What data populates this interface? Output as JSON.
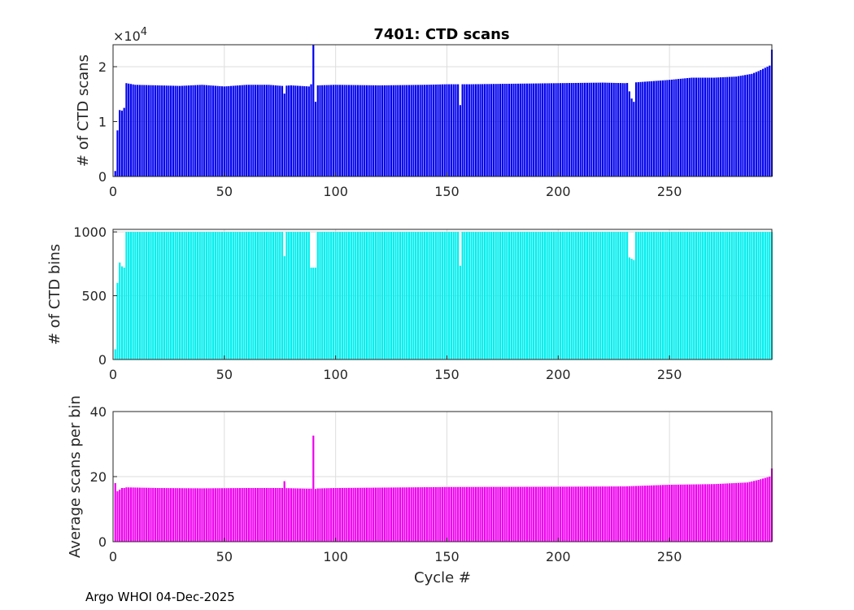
{
  "footer_text": "Argo WHOI 04-Dec-2025",
  "colors": {
    "scans": "#0000ee",
    "bins": "#00eeee",
    "avg": "#ee00ee",
    "grid": "#dedede",
    "axis": "#262626"
  },
  "chart_data": [
    {
      "type": "bar",
      "title": "7401: CTD scans",
      "xlabel": "",
      "ylabel": "# of CTD scans",
      "exponent_label": "×10",
      "exponent_power": "4",
      "xlim": [
        0,
        296
      ],
      "ylim": [
        0,
        2.4
      ],
      "xticks": [
        0,
        50,
        100,
        150,
        200,
        250
      ],
      "yticks": [
        0,
        1,
        2
      ],
      "ytick_labels": [
        "0",
        "1",
        "2"
      ],
      "series": [
        {
          "name": "scans (×10^4)",
          "color": "#0000ee",
          "base": [
            [
              1,
              0.1
            ],
            [
              2,
              0.84
            ],
            [
              3,
              1.21
            ],
            [
              4,
              1.2
            ],
            [
              5,
              1.25
            ],
            [
              6,
              1.7
            ],
            [
              10,
              1.67
            ],
            [
              20,
              1.66
            ],
            [
              30,
              1.65
            ],
            [
              40,
              1.67
            ],
            [
              50,
              1.64
            ],
            [
              60,
              1.67
            ],
            [
              70,
              1.67
            ],
            [
              76,
              1.65
            ],
            [
              80,
              1.66
            ],
            [
              88,
              1.64
            ],
            [
              92,
              1.66
            ],
            [
              100,
              1.67
            ],
            [
              120,
              1.66
            ],
            [
              140,
              1.67
            ],
            [
              150,
              1.68
            ],
            [
              160,
              1.68
            ],
            [
              180,
              1.69
            ],
            [
              200,
              1.7
            ],
            [
              220,
              1.71
            ],
            [
              230,
              1.7
            ],
            [
              240,
              1.73
            ],
            [
              250,
              1.76
            ],
            [
              260,
              1.8
            ],
            [
              270,
              1.8
            ],
            [
              280,
              1.82
            ],
            [
              287,
              1.87
            ],
            [
              290,
              1.92
            ],
            [
              295,
              2.02
            ]
          ],
          "overrides": {
            "77": 1.51,
            "89": 1.68,
            "90": 2.4,
            "91": 1.36,
            "156": 1.3,
            "232": 1.55,
            "233": 1.42,
            "234": 1.36,
            "296": 2.31
          }
        }
      ]
    },
    {
      "type": "bar",
      "title": "",
      "xlabel": "",
      "ylabel": "# of CTD bins",
      "xlim": [
        0,
        296
      ],
      "ylim": [
        0,
        1020
      ],
      "xticks": [
        0,
        50,
        100,
        150,
        200,
        250
      ],
      "yticks": [
        0,
        500,
        1000
      ],
      "ytick_labels": [
        "0",
        "500",
        "1000"
      ],
      "series": [
        {
          "name": "bins",
          "color": "#00eeee",
          "base": [
            [
              1,
              80
            ],
            [
              2,
              600
            ],
            [
              3,
              760
            ],
            [
              4,
              730
            ],
            [
              5,
              720
            ],
            [
              6,
              1000
            ],
            [
              295,
              1000
            ]
          ],
          "overrides": {
            "77": 810,
            "89": 720,
            "90": 720,
            "91": 720,
            "156": 735,
            "232": 800,
            "233": 790,
            "234": 780
          }
        }
      ]
    },
    {
      "type": "bar",
      "title": "",
      "xlabel": "Cycle #",
      "ylabel": "Average scans per bin",
      "xlim": [
        0,
        296
      ],
      "ylim": [
        0,
        40
      ],
      "xticks": [
        0,
        50,
        100,
        150,
        200,
        250
      ],
      "yticks": [
        0,
        20,
        40
      ],
      "ytick_labels": [
        "0",
        "20",
        "40"
      ],
      "series": [
        {
          "name": "avg",
          "color": "#ee00ee",
          "base": [
            [
              1,
              18
            ],
            [
              2,
              15.5
            ],
            [
              3,
              16
            ],
            [
              4,
              16.5
            ],
            [
              5,
              16.5
            ],
            [
              6,
              16.7
            ],
            [
              20,
              16.5
            ],
            [
              40,
              16.4
            ],
            [
              60,
              16.5
            ],
            [
              76,
              16.5
            ],
            [
              88,
              16.3
            ],
            [
              100,
              16.5
            ],
            [
              150,
              16.8
            ],
            [
              200,
              16.9
            ],
            [
              230,
              17
            ],
            [
              250,
              17.5
            ],
            [
              270,
              17.7
            ],
            [
              285,
              18.2
            ],
            [
              290,
              19
            ],
            [
              295,
              20
            ]
          ],
          "overrides": {
            "77": 18.6,
            "90": 32.6,
            "91": 16.2,
            "296": 22.5
          }
        }
      ]
    }
  ]
}
